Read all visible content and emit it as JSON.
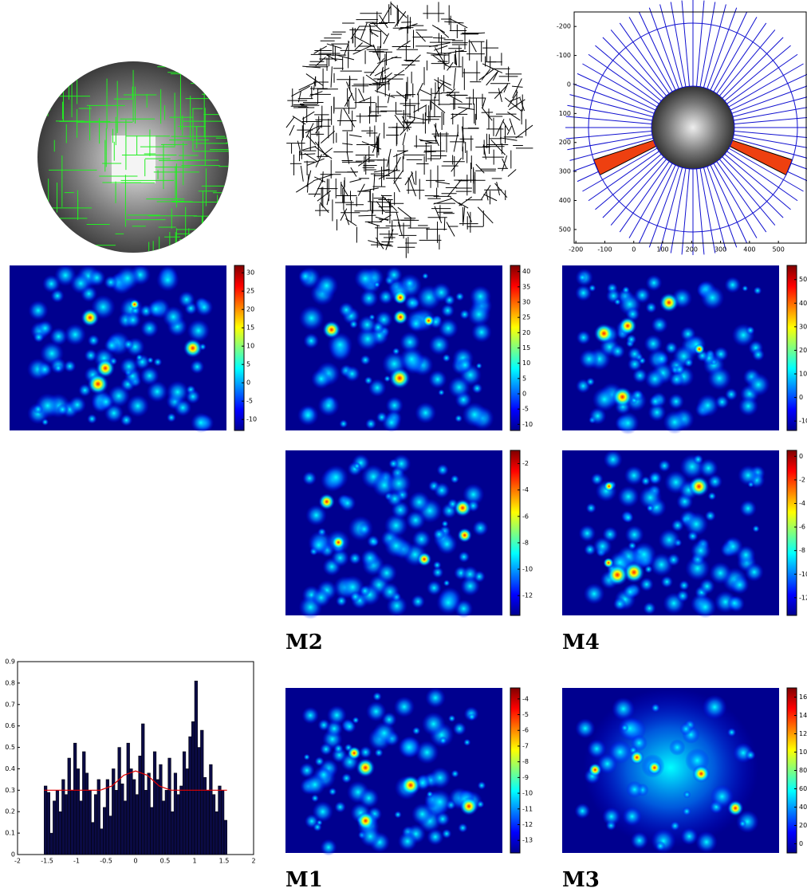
{
  "chart_data": [
    {
      "type": "image",
      "xlim": [
        -206,
        596
      ],
      "ylim": [
        -250,
        547
      ],
      "y_reversed": true,
      "xticks": [
        -200,
        -100,
        0,
        100,
        200,
        300,
        400,
        500
      ],
      "yticks": [
        -200,
        -100,
        0,
        100,
        200,
        300,
        400,
        500
      ]
    },
    {
      "type": "heatmap",
      "clim": [
        -13,
        32
      ],
      "cticks": [
        30,
        25,
        20,
        15,
        10,
        5,
        0,
        -5,
        -10
      ]
    },
    {
      "type": "heatmap",
      "clim": [
        -12,
        42
      ],
      "cticks": [
        40,
        35,
        30,
        25,
        20,
        15,
        10,
        5,
        0,
        -5,
        -10
      ]
    },
    {
      "type": "heatmap",
      "clim": [
        -14,
        56
      ],
      "cticks": [
        50,
        40,
        30,
        20,
        10,
        0,
        -10
      ]
    },
    {
      "type": "heatmap",
      "label": "M2",
      "clim": [
        -13.5,
        -1
      ],
      "cticks": [
        -2,
        -4,
        -6,
        -8,
        -10,
        -12
      ]
    },
    {
      "type": "heatmap",
      "label": "M4",
      "clim": [
        -13.5,
        0.5
      ],
      "cticks": [
        0,
        -2,
        -4,
        -6,
        -8,
        -10,
        -12
      ]
    },
    {
      "type": "heatmap",
      "label": "M1",
      "clim": [
        -13.8,
        -3.3
      ],
      "cticks": [
        -4,
        -5,
        -6,
        -7,
        -8,
        -9,
        -10,
        -11,
        -12,
        -13
      ]
    },
    {
      "type": "heatmap",
      "label": "M3",
      "clim": [
        -10,
        170
      ],
      "cticks": [
        160,
        140,
        120,
        100,
        80,
        60,
        40,
        20,
        0
      ]
    },
    {
      "type": "histogram",
      "color": "#0b0b45",
      "bins": [
        -1.55,
        -1.5,
        -1.45,
        -1.4,
        -1.35,
        -1.3,
        -1.25,
        -1.2,
        -1.15,
        -1.1,
        -1.05,
        -1,
        -0.95,
        -0.9,
        -0.85,
        -0.8,
        -0.75,
        -0.7,
        -0.65,
        -0.6,
        -0.55,
        -0.5,
        -0.45,
        -0.4,
        -0.35,
        -0.3,
        -0.25,
        -0.2,
        -0.15,
        -0.1,
        -0.05,
        0,
        0.05,
        0.1,
        0.15,
        0.2,
        0.25,
        0.3,
        0.35,
        0.4,
        0.45,
        0.5,
        0.55,
        0.6,
        0.65,
        0.7,
        0.75,
        0.8,
        0.85,
        0.9,
        0.95,
        1,
        1.05,
        1.1,
        1.15,
        1.2,
        1.25,
        1.3,
        1.35,
        1.4,
        1.45,
        1.5,
        1.55
      ],
      "values": [
        0.32,
        0.29,
        0.1,
        0.25,
        0.3,
        0.2,
        0.35,
        0.28,
        0.45,
        0.3,
        0.52,
        0.4,
        0.25,
        0.48,
        0.38,
        0.3,
        0.15,
        0.28,
        0.35,
        0.12,
        0.22,
        0.35,
        0.18,
        0.4,
        0.3,
        0.5,
        0.33,
        0.25,
        0.52,
        0.4,
        0.35,
        0.28,
        0.46,
        0.61,
        0.3,
        0.38,
        0.22,
        0.48,
        0.35,
        0.42,
        0.25,
        0.3,
        0.45,
        0.2,
        0.38,
        0.28,
        0.32,
        0.48,
        0.4,
        0.55,
        0.62,
        0.81,
        0.5,
        0.58,
        0.36,
        0.3,
        0.42,
        0.28,
        0.2,
        0.32,
        0.3,
        0.16
      ],
      "line": {
        "color": "#e00000",
        "x": [
          -1.55,
          -0.6,
          -0.4,
          -0.2,
          0,
          0.2,
          0.4,
          0.6,
          1.55
        ],
        "values": [
          0.3,
          0.3,
          0.32,
          0.37,
          0.39,
          0.37,
          0.32,
          0.3,
          0.3
        ]
      },
      "xlim": [
        -2,
        2
      ],
      "ylim": [
        0,
        0.9
      ],
      "xticks": [
        -2,
        -1.5,
        -1,
        -0.5,
        0,
        0.5,
        1,
        1.5,
        2
      ],
      "yticks": [
        0,
        0.1,
        0.2,
        0.3,
        0.4,
        0.5,
        0.6,
        0.7,
        0.8,
        0.9
      ]
    }
  ]
}
